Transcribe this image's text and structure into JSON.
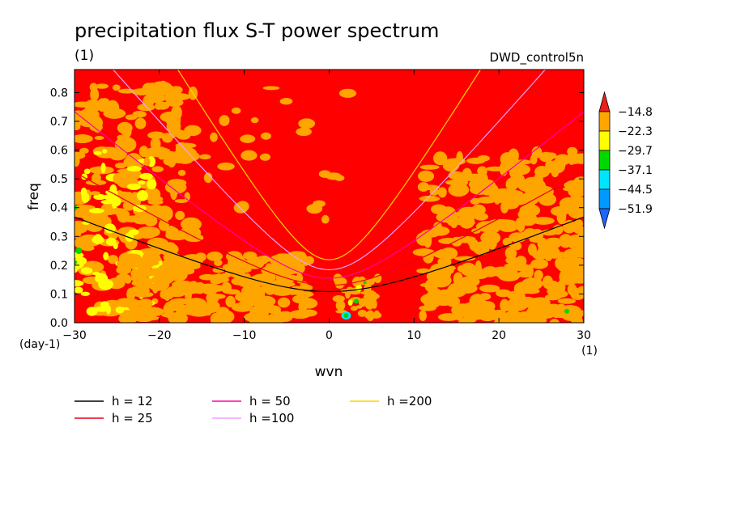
{
  "chart_data": {
    "type": "heatmap",
    "title": "precipitation flux S-T power spectrum",
    "subtitle_units": "(1)",
    "dataset_label": "DWD_control5n",
    "xlabel": "wvn",
    "x_units": "(1)",
    "ylabel": "freq",
    "y_units": "(day-1)",
    "xlim": [
      -30,
      30
    ],
    "ylim": [
      0,
      0.88
    ],
    "x_ticks": [
      -30,
      -20,
      -10,
      0,
      10,
      20,
      30
    ],
    "x_tick_labels": [
      "−30",
      "−20",
      "−10",
      "0",
      "10",
      "20",
      "30"
    ],
    "y_ticks": [
      0,
      0.1,
      0.2,
      0.3,
      0.4,
      0.5,
      0.6,
      0.7,
      0.8
    ],
    "y_tick_labels": [
      "0.0",
      "0.1",
      "0.2",
      "0.3",
      "0.4",
      "0.5",
      "0.6",
      "0.7",
      "0.8"
    ],
    "colorbar": {
      "labels": [
        "−14.8",
        "−22.3",
        "−29.7",
        "−37.1",
        "−44.5",
        "−51.9"
      ],
      "colors": [
        "#e8211e",
        "#ffa500",
        "#ffff00",
        "#00d800",
        "#00e5ff",
        "#0099ff",
        "#1e64ff"
      ]
    },
    "background_color": "#ff0000",
    "series": [
      {
        "name": "h = 12",
        "color": "#000000",
        "equivalent_depth_m": 12
      },
      {
        "name": "h = 25",
        "color": "#e8001a",
        "equivalent_depth_m": 25
      },
      {
        "name": "h = 50",
        "color": "#ff00aa",
        "equivalent_depth_m": 50
      },
      {
        "name": "h =100",
        "color": "#f0a0ff",
        "equivalent_depth_m": 100
      },
      {
        "name": "h =200",
        "color": "#ffd400",
        "equivalent_depth_m": 200
      }
    ],
    "legend_position": "bottom"
  }
}
